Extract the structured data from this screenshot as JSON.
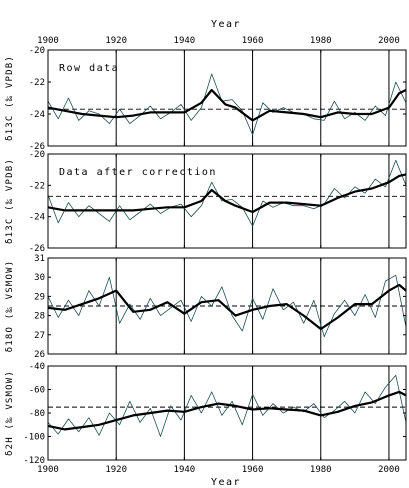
{
  "chart_data": {
    "type": "line",
    "xlabel_top": "Year",
    "xlabel_bottom": "Year",
    "xlim": [
      1900,
      2005
    ],
    "x_ticks": [
      1900,
      1920,
      1940,
      1960,
      1980,
      2000
    ],
    "grid_vertical_at": [
      1920,
      1940,
      1960,
      1980,
      2000
    ],
    "panels": [
      {
        "id": "raw",
        "annotation": "Row data",
        "ylabel": "δ13C (‰ VPDB)",
        "ylim": [
          -26,
          -20
        ],
        "y_ticks": [
          -20,
          -22,
          -24,
          -26
        ],
        "mean": -23.7,
        "series": [
          {
            "style": "thin",
            "x": [
              1900,
              1903,
              1906,
              1909,
              1912,
              1915,
              1918,
              1921,
              1924,
              1927,
              1930,
              1933,
              1936,
              1939,
              1942,
              1945,
              1948,
              1951,
              1954,
              1957,
              1960,
              1963,
              1966,
              1969,
              1972,
              1975,
              1978,
              1981,
              1984,
              1987,
              1990,
              1993,
              1996,
              1999,
              2002,
              2005
            ],
            "y": [
              -23.2,
              -24.3,
              -23.0,
              -24.4,
              -23.8,
              -24.0,
              -24.6,
              -23.7,
              -24.6,
              -24.1,
              -23.5,
              -24.3,
              -23.9,
              -23.4,
              -24.4,
              -23.6,
              -21.5,
              -23.2,
              -23.1,
              -23.8,
              -25.3,
              -23.3,
              -23.9,
              -23.6,
              -23.9,
              -24.0,
              -24.3,
              -24.4,
              -23.2,
              -24.3,
              -23.9,
              -24.4,
              -23.5,
              -24.1,
              -22.0,
              -23.3
            ]
          },
          {
            "style": "thick",
            "x": [
              1900,
              1905,
              1910,
              1915,
              1920,
              1925,
              1930,
              1935,
              1940,
              1945,
              1948,
              1952,
              1955,
              1960,
              1965,
              1970,
              1975,
              1980,
              1985,
              1990,
              1995,
              2000,
              2003,
              2005
            ],
            "y": [
              -23.6,
              -23.8,
              -24.0,
              -24.1,
              -24.2,
              -24.1,
              -23.9,
              -23.9,
              -23.9,
              -23.3,
              -22.5,
              -23.4,
              -23.6,
              -24.4,
              -23.8,
              -23.9,
              -24.0,
              -24.2,
              -23.9,
              -24.0,
              -24.0,
              -23.6,
              -22.7,
              -22.5
            ]
          }
        ]
      },
      {
        "id": "corrected",
        "annotation": "Data after correction",
        "ylabel": "δ13C (‰ VPDB)",
        "ylim": [
          -26,
          -20
        ],
        "y_ticks": [
          -20,
          -22,
          -24,
          -26
        ],
        "mean": -22.7,
        "series": [
          {
            "style": "thin",
            "x": [
              1900,
              1903,
              1906,
              1909,
              1912,
              1915,
              1918,
              1921,
              1924,
              1927,
              1930,
              1933,
              1936,
              1939,
              1942,
              1945,
              1948,
              1951,
              1954,
              1957,
              1960,
              1963,
              1966,
              1969,
              1972,
              1975,
              1978,
              1981,
              1984,
              1987,
              1990,
              1993,
              1996,
              1999,
              2002,
              2005
            ],
            "y": [
              -22.6,
              -24.4,
              -23.1,
              -24.0,
              -23.3,
              -23.8,
              -24.3,
              -23.3,
              -24.2,
              -23.7,
              -23.2,
              -23.8,
              -23.4,
              -23.2,
              -24.0,
              -23.3,
              -21.8,
              -23.0,
              -22.9,
              -23.4,
              -24.6,
              -23.0,
              -23.4,
              -23.1,
              -23.3,
              -23.3,
              -23.5,
              -23.2,
              -22.2,
              -22.8,
              -22.1,
              -22.5,
              -21.6,
              -22.1,
              -20.4,
              -22.0
            ]
          },
          {
            "style": "thick",
            "x": [
              1900,
              1905,
              1910,
              1915,
              1920,
              1925,
              1930,
              1935,
              1940,
              1945,
              1948,
              1952,
              1955,
              1960,
              1965,
              1970,
              1975,
              1980,
              1985,
              1990,
              1995,
              2000,
              2003,
              2005
            ],
            "y": [
              -23.4,
              -23.6,
              -23.6,
              -23.6,
              -23.6,
              -23.6,
              -23.5,
              -23.4,
              -23.4,
              -23.0,
              -22.3,
              -23.0,
              -23.3,
              -23.7,
              -23.1,
              -23.1,
              -23.2,
              -23.3,
              -22.8,
              -22.4,
              -22.2,
              -21.8,
              -21.4,
              -21.3
            ]
          }
        ]
      },
      {
        "id": "d18o",
        "annotation": "",
        "ylabel": "δ18O (‰ VSMOW)",
        "ylim": [
          26,
          31
        ],
        "y_ticks": [
          26,
          27,
          28,
          29,
          30,
          31
        ],
        "mean": 28.5,
        "series": [
          {
            "style": "thin",
            "x": [
              1900,
              1903,
              1906,
              1909,
              1912,
              1915,
              1918,
              1921,
              1924,
              1927,
              1930,
              1933,
              1936,
              1939,
              1942,
              1945,
              1948,
              1951,
              1954,
              1957,
              1960,
              1963,
              1966,
              1969,
              1972,
              1975,
              1978,
              1981,
              1984,
              1987,
              1990,
              1993,
              1996,
              1999,
              2002,
              2005
            ],
            "y": [
              29.0,
              27.9,
              28.8,
              28.0,
              29.3,
              28.5,
              30.0,
              27.6,
              28.6,
              27.8,
              28.9,
              28.0,
              28.4,
              28.8,
              27.7,
              29.0,
              28.5,
              29.5,
              28.0,
              27.2,
              28.9,
              27.8,
              29.4,
              28.3,
              28.7,
              27.6,
              28.8,
              26.9,
              28.1,
              28.8,
              28.0,
              29.1,
              27.9,
              29.8,
              30.1,
              27.4
            ]
          },
          {
            "style": "thick",
            "x": [
              1900,
              1905,
              1910,
              1915,
              1920,
              1925,
              1930,
              1935,
              1940,
              1945,
              1950,
              1955,
              1960,
              1965,
              1970,
              1975,
              1980,
              1985,
              1990,
              1995,
              2000,
              2003,
              2005
            ],
            "y": [
              28.4,
              28.3,
              28.6,
              28.9,
              29.3,
              28.2,
              28.3,
              28.7,
              28.1,
              28.7,
              28.8,
              28.0,
              28.3,
              28.5,
              28.6,
              28.0,
              27.3,
              27.9,
              28.6,
              28.6,
              29.3,
              29.6,
              29.3
            ]
          }
        ]
      },
      {
        "id": "d2h",
        "annotation": "",
        "ylabel": "δ2H (‰ VSMOW)",
        "ylim": [
          -120,
          -40
        ],
        "y_ticks": [
          -40,
          -60,
          -80,
          -100,
          -120
        ],
        "mean": -75,
        "series": [
          {
            "style": "thin",
            "x": [
              1900,
              1903,
              1906,
              1909,
              1912,
              1915,
              1918,
              1921,
              1924,
              1927,
              1930,
              1933,
              1936,
              1939,
              1942,
              1945,
              1948,
              1951,
              1954,
              1957,
              1960,
              1963,
              1966,
              1969,
              1972,
              1975,
              1978,
              1981,
              1984,
              1987,
              1990,
              1993,
              1996,
              1999,
              2002,
              2005
            ],
            "y": [
              -88,
              -98,
              -85,
              -96,
              -84,
              -99,
              -80,
              -90,
              -70,
              -88,
              -76,
              -100,
              -74,
              -86,
              -65,
              -80,
              -62,
              -82,
              -70,
              -90,
              -64,
              -82,
              -72,
              -80,
              -75,
              -79,
              -72,
              -84,
              -78,
              -70,
              -80,
              -62,
              -72,
              -58,
              -48,
              -88
            ]
          },
          {
            "style": "thick",
            "x": [
              1900,
              1905,
              1910,
              1915,
              1920,
              1925,
              1930,
              1935,
              1940,
              1945,
              1950,
              1955,
              1960,
              1965,
              1970,
              1975,
              1980,
              1985,
              1990,
              1995,
              2000,
              2003,
              2005
            ],
            "y": [
              -91,
              -94,
              -92,
              -90,
              -86,
              -82,
              -80,
              -78,
              -79,
              -75,
              -72,
              -74,
              -77,
              -76,
              -77,
              -78,
              -82,
              -79,
              -74,
              -71,
              -65,
              -62,
              -65
            ]
          }
        ]
      }
    ]
  }
}
